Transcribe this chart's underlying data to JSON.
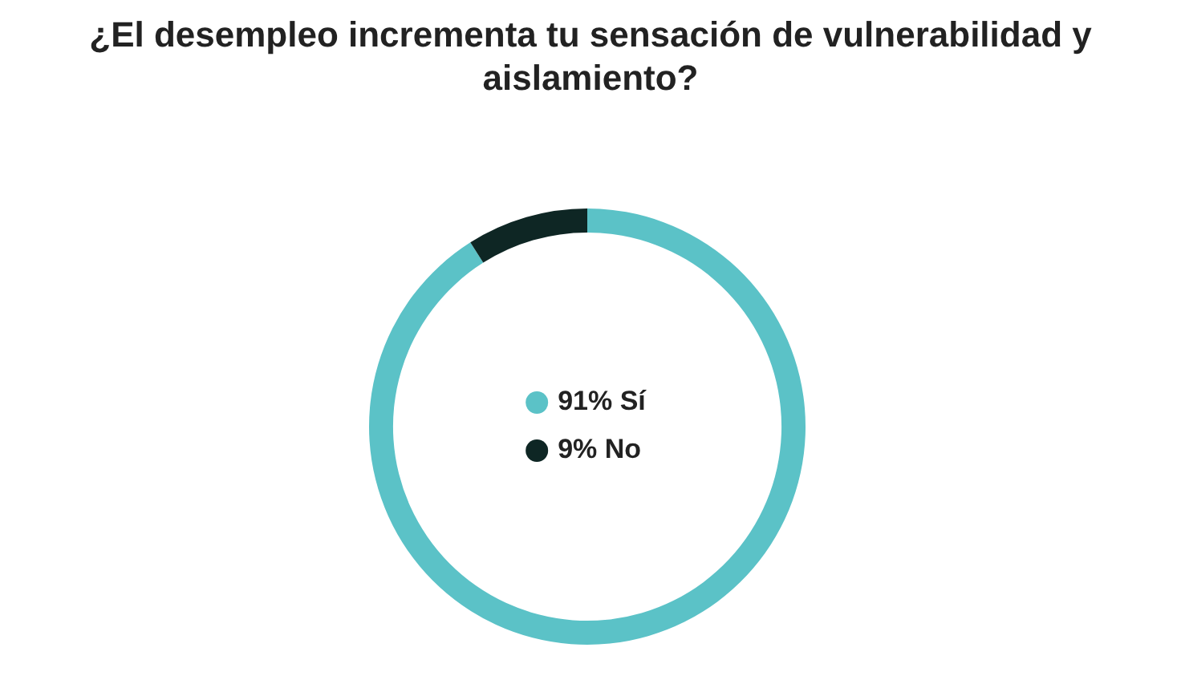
{
  "chart_data": {
    "type": "donut",
    "title": "¿El desempleo incrementa tu sensación de vulnerabilidad y aislamiento?",
    "categories": [
      "Sí",
      "No"
    ],
    "values": [
      91,
      9
    ],
    "value_labels": [
      "91%",
      "9%"
    ],
    "colors": [
      "#5bc2c7",
      "#0e2624"
    ],
    "legend": "center"
  }
}
